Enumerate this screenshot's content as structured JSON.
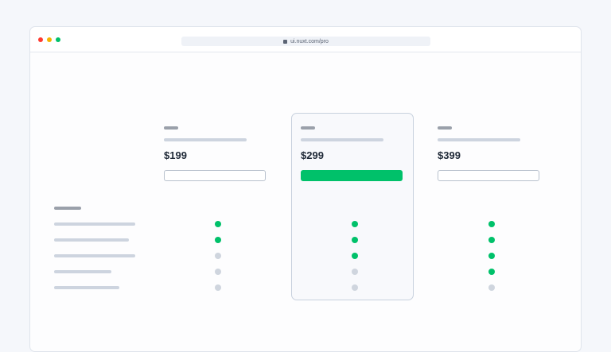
{
  "browser": {
    "url": "ui.nuxt.com/pro",
    "lock_icon": "lock-icon",
    "traffic_lights": [
      "#ff3b30",
      "#f5b400",
      "#00c16a"
    ]
  },
  "colors": {
    "accent": "#00c16a",
    "muted_dot": "#cfd5de"
  },
  "plans": [
    {
      "price": "$199",
      "featured": false,
      "features": [
        true,
        true,
        false,
        false,
        false
      ]
    },
    {
      "price": "$299",
      "featured": true,
      "features": [
        true,
        true,
        true,
        false,
        false
      ]
    },
    {
      "price": "$399",
      "featured": false,
      "features": [
        true,
        true,
        true,
        true,
        false
      ]
    }
  ]
}
